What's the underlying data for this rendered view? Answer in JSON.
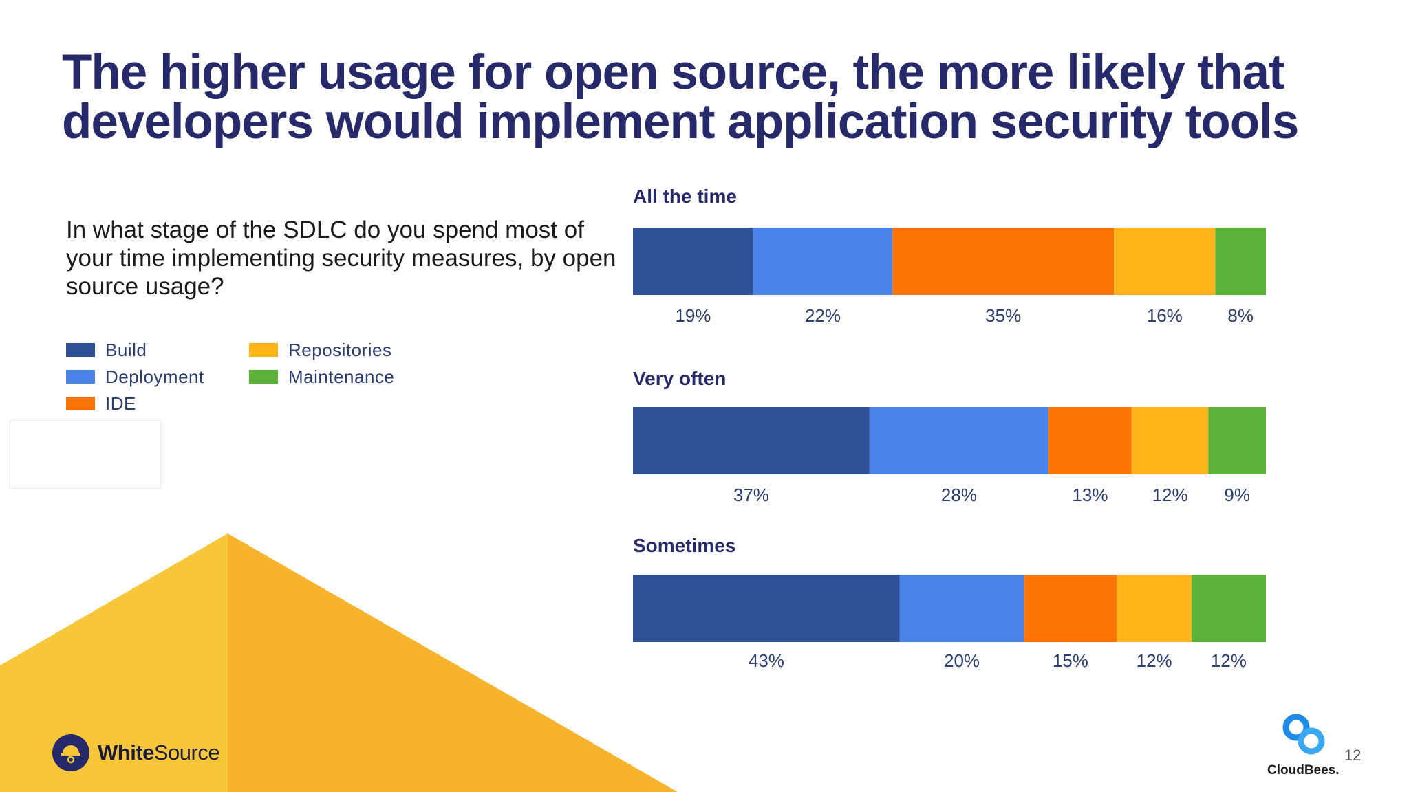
{
  "title": "The higher usage for open source, the more likely that developers would implement application security tools",
  "question": "In what stage of the SDLC do you spend most of your time implementing security measures, by open source usage?",
  "legend": [
    {
      "label": "Build",
      "color": "#2f5196"
    },
    {
      "label": "Deployment",
      "color": "#4a83e8"
    },
    {
      "label": "IDE",
      "color": "#fd7506"
    },
    {
      "label": "Repositories",
      "color": "#fdb51b"
    },
    {
      "label": "Maintenance",
      "color": "#5cb238"
    }
  ],
  "chart_data": {
    "type": "bar",
    "orientation": "horizontal",
    "stacked": true,
    "normalized": true,
    "categories": [
      "All the time",
      "Very often",
      "Sometimes"
    ],
    "series": [
      {
        "name": "Build",
        "color": "#2f5196",
        "values": [
          19,
          37,
          43
        ]
      },
      {
        "name": "Deployment",
        "color": "#4a83e8",
        "values": [
          22,
          28,
          20
        ]
      },
      {
        "name": "IDE",
        "color": "#fd7506",
        "values": [
          35,
          13,
          15
        ]
      },
      {
        "name": "Repositories",
        "color": "#fdb51b",
        "values": [
          16,
          12,
          12
        ]
      },
      {
        "name": "Maintenance",
        "color": "#5cb238",
        "values": [
          8,
          9,
          12
        ]
      }
    ],
    "value_suffix": "%",
    "legend_position": "left"
  },
  "logos": {
    "left_brand": "WhiteSource",
    "left_brand_bold": "White",
    "left_brand_light": "Source",
    "right_brand": "CloudBees."
  },
  "page_number": "12"
}
